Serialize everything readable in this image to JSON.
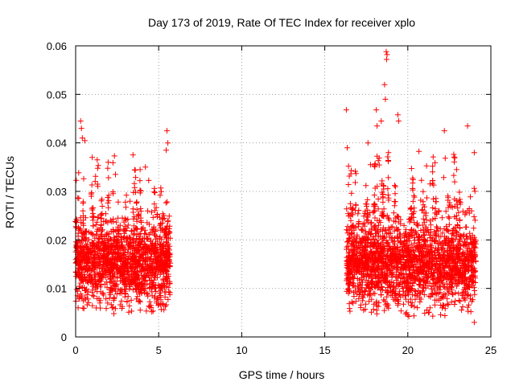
{
  "chart_data": {
    "type": "scatter",
    "title": "Day 173 of 2019, Rate Of TEC Index for receiver xplo",
    "xlabel": "GPS time / hours",
    "ylabel": "ROTI / TECUs",
    "xlim": [
      0,
      25
    ],
    "ylim": [
      0,
      0.06
    ],
    "x_ticks": [
      0,
      5,
      10,
      15,
      20,
      25
    ],
    "x_tick_labels": [
      "0",
      "5",
      "10",
      "15",
      "20",
      "25"
    ],
    "y_ticks": [
      0,
      0.01,
      0.02,
      0.03,
      0.04,
      0.05,
      0.06
    ],
    "y_tick_labels": [
      "0",
      "0.01",
      "0.02",
      "0.03",
      "0.04",
      "0.05",
      "0.06"
    ],
    "grid": true,
    "marker": "+",
    "color": "#ff0000",
    "series": [
      {
        "name": "ROTI",
        "segments": [
          {
            "x_range": [
              0.0,
              5.7
            ],
            "typical_range": [
              0.007,
              0.025
            ],
            "median": 0.015
          },
          {
            "x_range": [
              16.3,
              24.1
            ],
            "typical_range": [
              0.006,
              0.028
            ],
            "median": 0.015
          }
        ],
        "notable_points": [
          [
            0.3,
            0.0445
          ],
          [
            0.35,
            0.043
          ],
          [
            0.4,
            0.041
          ],
          [
            1.0,
            0.037
          ],
          [
            1.3,
            0.0365
          ],
          [
            2.4,
            0.0335
          ],
          [
            4.2,
            0.035
          ],
          [
            5.5,
            0.0425
          ],
          [
            5.55,
            0.04
          ],
          [
            5.45,
            0.0385
          ],
          [
            16.3,
            0.0468
          ],
          [
            16.35,
            0.039
          ],
          [
            17.6,
            0.04
          ],
          [
            18.1,
            0.0468
          ],
          [
            18.15,
            0.0435
          ],
          [
            18.4,
            0.0445
          ],
          [
            18.6,
            0.052
          ],
          [
            18.65,
            0.049
          ],
          [
            18.7,
            0.0588
          ],
          [
            18.75,
            0.0582
          ],
          [
            18.72,
            0.0572
          ],
          [
            19.4,
            0.0458
          ],
          [
            19.45,
            0.0445
          ],
          [
            22.2,
            0.0425
          ],
          [
            23.6,
            0.0435
          ],
          [
            24.0,
            0.038
          ],
          [
            0.15,
            0.006
          ],
          [
            2.3,
            0.0048
          ],
          [
            20.0,
            0.0045
          ],
          [
            21.5,
            0.0043
          ],
          [
            24.0,
            0.003
          ],
          [
            23.8,
            0.0052
          ]
        ]
      }
    ]
  }
}
